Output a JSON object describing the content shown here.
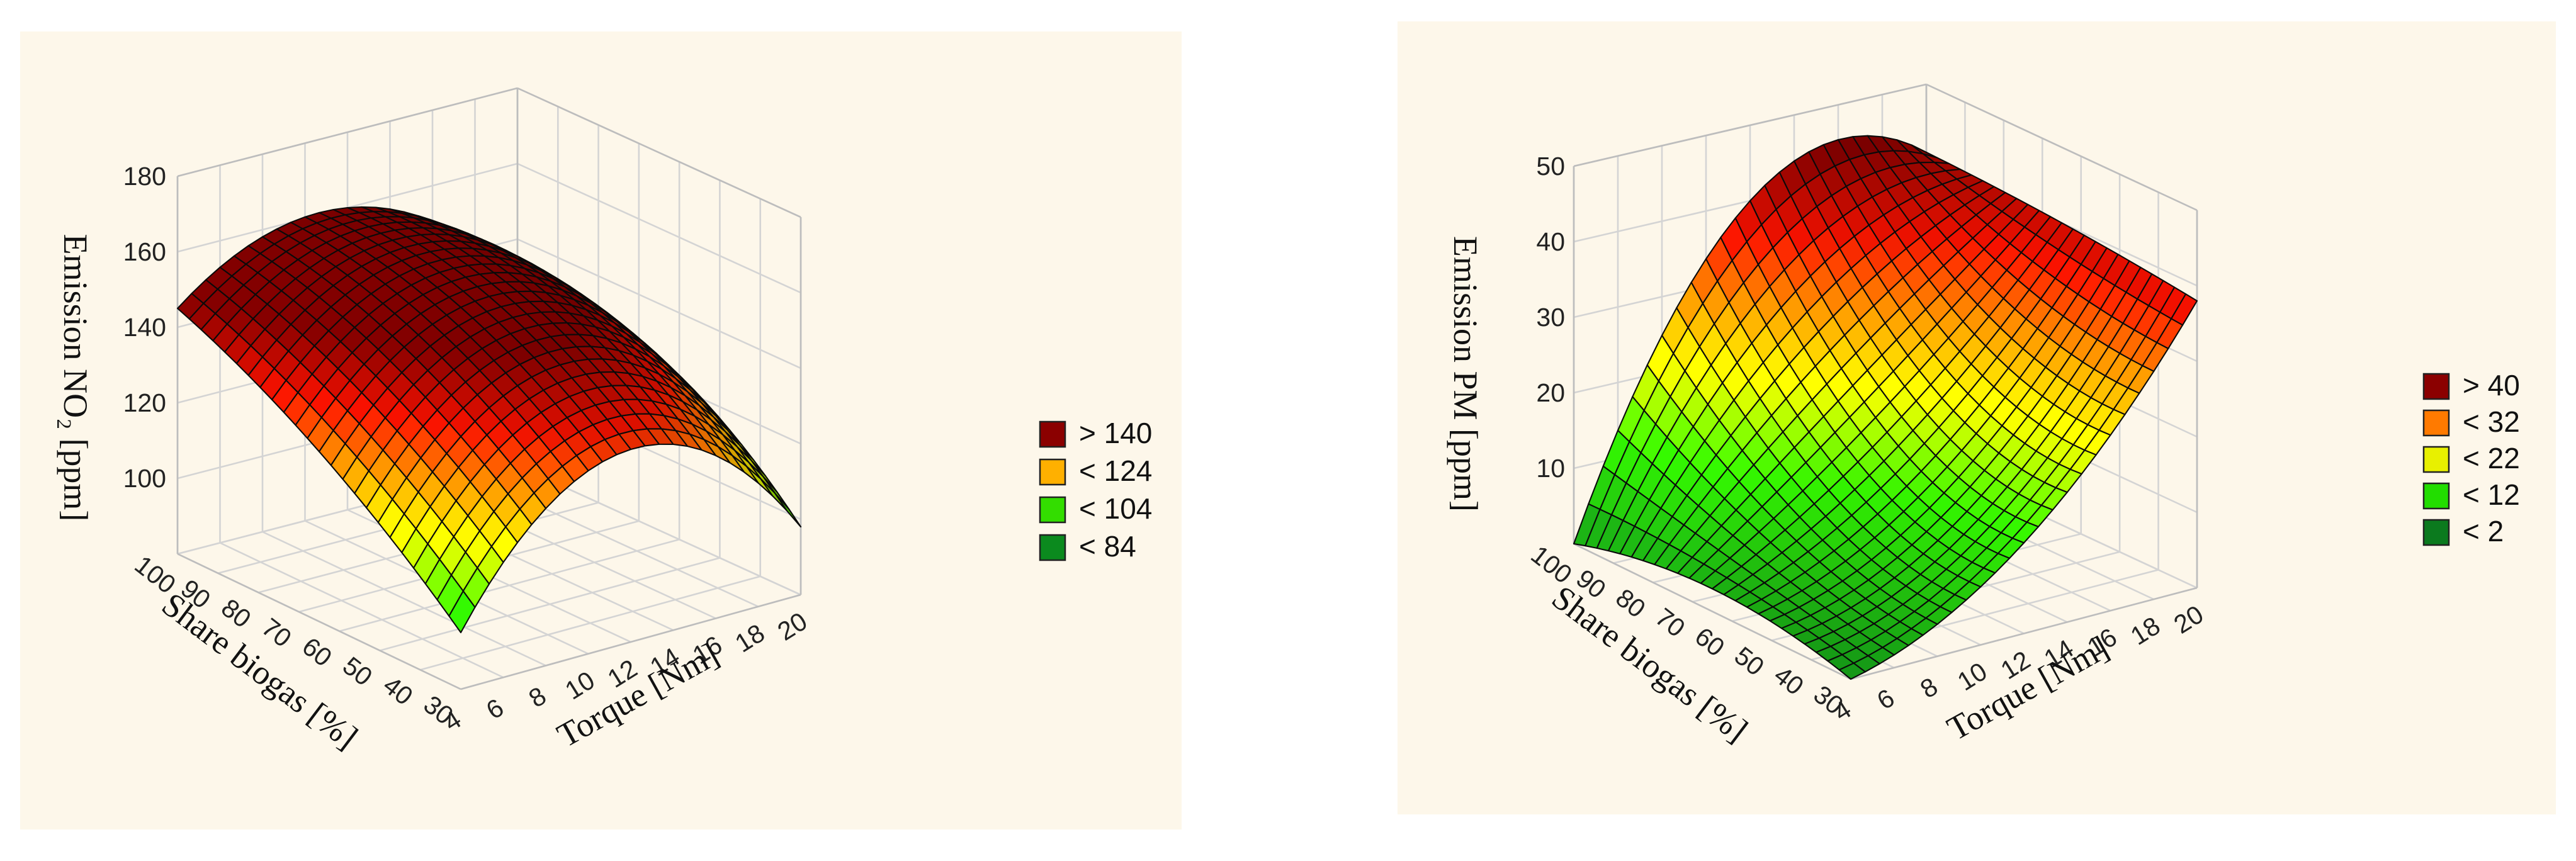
{
  "chart_data": [
    {
      "type": "surface",
      "title": "",
      "xlabel": "Torque [Nm]",
      "ylabel": "Share biogas [%]",
      "zlabel": "Emission NO₂ [ppm]",
      "xlim": [
        4,
        20
      ],
      "ylim": [
        30,
        100
      ],
      "zlim": [
        80,
        180
      ],
      "x_ticks": [
        "4",
        "6",
        "8",
        "10",
        "12",
        "14",
        "16",
        "18",
        "20"
      ],
      "y_ticks": [
        "30",
        "40",
        "50",
        "60",
        "70",
        "80",
        "90",
        "100"
      ],
      "z_ticks": [
        "100",
        "120",
        "140",
        "160",
        "180"
      ],
      "surface_points": {
        "x": [
          4,
          12,
          20,
          4,
          12,
          20,
          4,
          12,
          20
        ],
        "y": [
          30,
          30,
          30,
          65,
          65,
          65,
          100,
          100,
          100
        ],
        "z": [
          95,
          131,
          98,
          125,
          154,
          126,
          145,
          160,
          130
        ]
      },
      "legend": [
        {
          "label": "> 140",
          "color": "#8b0000"
        },
        {
          "label": "< 124",
          "color": "#ffb000"
        },
        {
          "label": "< 104",
          "color": "#33dd00"
        },
        {
          "label": "< 84",
          "color": "#0b8a1e"
        }
      ],
      "legend_thresholds": [
        140,
        124,
        104,
        84
      ]
    },
    {
      "type": "surface",
      "title": "",
      "xlabel": "Torque [Nm]",
      "ylabel": "Share biogas [%]",
      "zlabel": "Emission PM [ppm]",
      "xlim": [
        4,
        20
      ],
      "ylim": [
        30,
        100
      ],
      "zlim": [
        0,
        50
      ],
      "x_ticks": [
        "4",
        "6",
        "8",
        "10",
        "12",
        "14",
        "16",
        "18",
        "20"
      ],
      "y_ticks": [
        "30",
        "40",
        "50",
        "60",
        "70",
        "80",
        "90",
        "100"
      ],
      "z_ticks": [
        "10",
        "20",
        "30",
        "40",
        "50"
      ],
      "surface_points": {
        "x": [
          4,
          12,
          20,
          4,
          12,
          20,
          4,
          12,
          20
        ],
        "y": [
          30,
          30,
          30,
          65,
          65,
          65,
          100,
          100,
          100
        ],
        "z": [
          0,
          12,
          38,
          3,
          18,
          40,
          0,
          40,
          41
        ]
      },
      "legend": [
        {
          "label": "> 40",
          "color": "#8b0000"
        },
        {
          "label": "< 32",
          "color": "#ff7a00"
        },
        {
          "label": "< 22",
          "color": "#e8f000"
        },
        {
          "label": "< 12",
          "color": "#22dd00"
        },
        {
          "label": "< 2",
          "color": "#0b7a1e"
        }
      ],
      "legend_thresholds": [
        40,
        32,
        22,
        12,
        2
      ]
    }
  ]
}
